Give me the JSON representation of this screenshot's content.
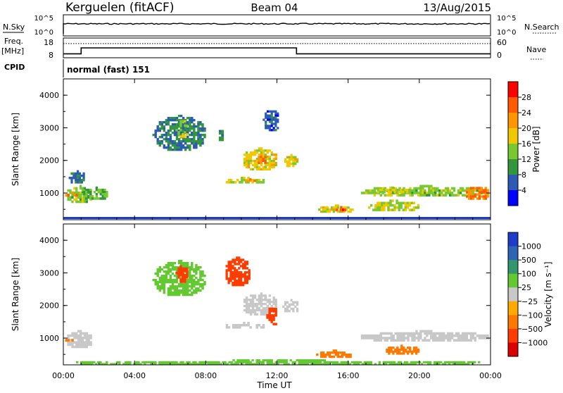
{
  "header": {
    "station": "Kerguelen (fitACF)",
    "beam": "Beam 04",
    "date": "13/Aug/2015"
  },
  "noise_panel": {
    "left_label": "N.Sky",
    "right_label": "N.Search",
    "left_ticks": [
      "10^5",
      "10^0"
    ],
    "right_ticks": [
      "10^5",
      "10^0"
    ]
  },
  "freq_panel": {
    "left_label_1": "Freq.",
    "left_label_2": "[MHz]",
    "left_ticks": [
      "18",
      "8"
    ],
    "right_label": "Nave",
    "right_ticks": [
      "60",
      "0"
    ],
    "cpid_label": "CPID",
    "cpid_text": "normal (fast) 151"
  },
  "power_colorbar": {
    "label": "Power [dB]",
    "ticks": [
      "28",
      "24",
      "20",
      "16",
      "12",
      "8",
      "4"
    ],
    "colors": [
      "#ff0000",
      "#ff5a00",
      "#ff9600",
      "#f0c800",
      "#78c832",
      "#32963c",
      "#2d5ab4",
      "#0000ff"
    ]
  },
  "velocity_colorbar": {
    "label": "Velocity [m s⁻¹]",
    "ticks": [
      "1000",
      "500",
      "100",
      "25",
      "−25",
      "−100",
      "−500",
      "−1000"
    ],
    "colors": [
      "#1e3cc8",
      "#2d64b4",
      "#32966e",
      "#64c832",
      "#c8c8c8",
      "#ffaa00",
      "#ff7800",
      "#ff3c00",
      "#dc0000"
    ]
  },
  "axes": {
    "ylabel": "Slant Range [km]",
    "xlabel": "Time UT",
    "y_ticks": [
      "4000",
      "3000",
      "2000",
      "1000"
    ],
    "x_ticks": [
      "00:00",
      "04:00",
      "08:00",
      "12:00",
      "16:00",
      "20:00",
      "00:00"
    ]
  },
  "chart_data": {
    "type": "heatmap",
    "x_range_hours": [
      0,
      24
    ],
    "y_range_km": [
      180,
      4500
    ],
    "freq_mhz": [
      {
        "from": 0,
        "to": 1,
        "value": 10
      },
      {
        "from": 1,
        "to": 13.1,
        "value": 13
      },
      {
        "from": 13.1,
        "to": 24,
        "value": 10
      }
    ],
    "nave_level": 43,
    "power_blobs": [
      {
        "t": [
          0.1,
          1.6
        ],
        "r": [
          700,
          1250
        ],
        "dB": 14
      },
      {
        "t": [
          0.1,
          0.8
        ],
        "r": [
          900,
          1050
        ],
        "dB": 22
      },
      {
        "t": [
          0.3,
          1.2
        ],
        "r": [
          1300,
          1700
        ],
        "dB": 8
      },
      {
        "t": [
          1.0,
          2.5
        ],
        "r": [
          800,
          1200
        ],
        "dB": 12
      },
      {
        "t": [
          5.0,
          8.0
        ],
        "r": [
          2300,
          3400
        ],
        "dB": 8
      },
      {
        "t": [
          6.3,
          7.0
        ],
        "r": [
          2700,
          3300
        ],
        "dB": 14
      },
      {
        "t": [
          8.6,
          9.0
        ],
        "r": [
          2600,
          3000
        ],
        "dB": 10
      },
      {
        "t": [
          9.0,
          11.3
        ],
        "r": [
          1300,
          1500
        ],
        "dB": 16
      },
      {
        "t": [
          10.2,
          10.8
        ],
        "r": [
          1350,
          1450
        ],
        "dB": 24
      },
      {
        "t": [
          10.0,
          12.0
        ],
        "r": [
          1700,
          2400
        ],
        "dB": 18
      },
      {
        "t": [
          10.8,
          11.4
        ],
        "r": [
          1900,
          2200
        ],
        "dB": 24
      },
      {
        "t": [
          11.2,
          12.1
        ],
        "r": [
          2900,
          3600
        ],
        "dB": 6
      },
      {
        "t": [
          12.3,
          13.2
        ],
        "r": [
          1800,
          2200
        ],
        "dB": 18
      },
      {
        "t": [
          14.2,
          16.3
        ],
        "r": [
          400,
          650
        ],
        "dB": 18
      },
      {
        "t": [
          15.2,
          16.0
        ],
        "r": [
          450,
          600
        ],
        "dB": 26
      },
      {
        "t": [
          16.6,
          23.9
        ],
        "r": [
          900,
          1250
        ],
        "dB": 14
      },
      {
        "t": [
          17.5,
          19.5
        ],
        "r": [
          1000,
          1200
        ],
        "dB": 16
      },
      {
        "t": [
          22.5,
          23.9
        ],
        "r": [
          800,
          1250
        ],
        "dB": 24
      },
      {
        "t": [
          17.0,
          20.0
        ],
        "r": [
          450,
          800
        ],
        "dB": 16
      }
    ],
    "velocity_blobs": [
      {
        "t": [
          0.1,
          1.6
        ],
        "r": [
          700,
          1250
        ],
        "v": 20
      },
      {
        "t": [
          0.1,
          0.8
        ],
        "r": [
          900,
          1050
        ],
        "v": -200
      },
      {
        "t": [
          5.0,
          8.0
        ],
        "r": [
          2300,
          3400
        ],
        "v": 60
      },
      {
        "t": [
          6.3,
          7.0
        ],
        "r": [
          2700,
          3300
        ],
        "v": -600
      },
      {
        "t": [
          9.0,
          10.5
        ],
        "r": [
          2600,
          3500
        ],
        "v": -600
      },
      {
        "t": [
          9.0,
          11.3
        ],
        "r": [
          1300,
          1500
        ],
        "v": 0
      },
      {
        "t": [
          10.0,
          12.0
        ],
        "r": [
          1700,
          2400
        ],
        "v": 0
      },
      {
        "t": [
          11.4,
          12.0
        ],
        "r": [
          1400,
          2000
        ],
        "v": -600
      },
      {
        "t": [
          12.3,
          13.2
        ],
        "r": [
          1800,
          2200
        ],
        "v": 0
      },
      {
        "t": [
          14.2,
          16.3
        ],
        "r": [
          400,
          650
        ],
        "v": -200
      },
      {
        "t": [
          16.6,
          23.9
        ],
        "r": [
          900,
          1250
        ],
        "v": 0
      },
      {
        "t": [
          18.0,
          20.0
        ],
        "r": [
          500,
          800
        ],
        "v": -200
      },
      {
        "t": [
          0.0,
          24.0
        ],
        "r": [
          180,
          350
        ],
        "v": 60
      }
    ]
  }
}
